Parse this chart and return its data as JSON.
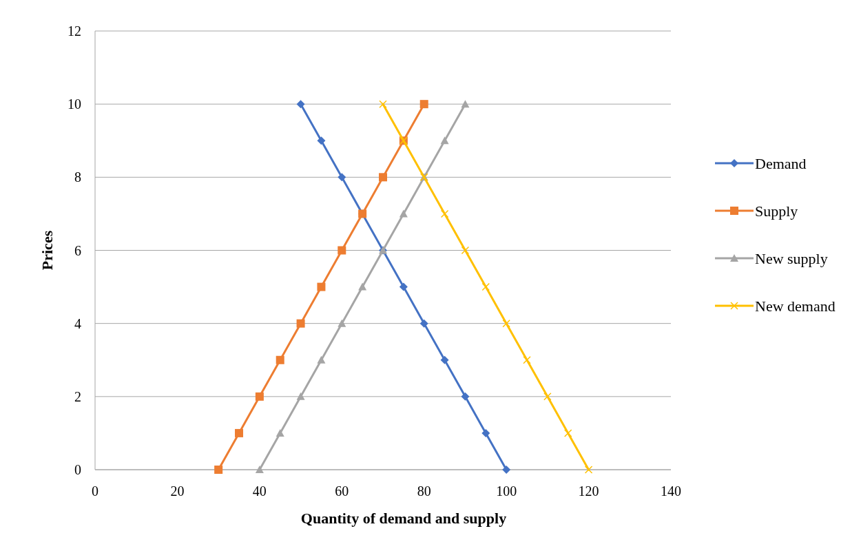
{
  "chart_data": {
    "type": "line",
    "xlabel": "Quantity of demand and supply",
    "ylabel": "Prices",
    "xlim": [
      0,
      140
    ],
    "xticks": [
      0,
      20,
      40,
      60,
      80,
      100,
      120,
      140
    ],
    "ylim": [
      0,
      12
    ],
    "yticks": [
      0,
      2,
      4,
      6,
      8,
      10,
      12
    ],
    "grid": "y",
    "legend": "right",
    "line_style": "solid",
    "series": [
      {
        "name": "Demand",
        "color": "#4472c4",
        "marker": "diamond",
        "x": [
          50,
          55,
          60,
          65,
          70,
          75,
          80,
          85,
          90,
          95,
          100
        ],
        "values": [
          10,
          9,
          8,
          7,
          6,
          5,
          4,
          3,
          2,
          1,
          0
        ]
      },
      {
        "name": "Supply",
        "color": "#ed7d31",
        "marker": "square",
        "x": [
          30,
          35,
          40,
          45,
          50,
          55,
          60,
          65,
          70,
          75,
          80
        ],
        "values": [
          0,
          1,
          2,
          3,
          4,
          5,
          6,
          7,
          8,
          9,
          10
        ]
      },
      {
        "name": "New supply",
        "color": "#a5a5a5",
        "marker": "triangle",
        "x": [
          40,
          45,
          50,
          55,
          60,
          65,
          70,
          75,
          80,
          85,
          90
        ],
        "values": [
          0,
          1,
          2,
          3,
          4,
          5,
          6,
          7,
          8,
          9,
          10
        ]
      },
      {
        "name": "New demand",
        "color": "#ffc000",
        "marker": "cross",
        "x": [
          70,
          75,
          80,
          85,
          90,
          95,
          100,
          105,
          110,
          115,
          120
        ],
        "values": [
          10,
          9,
          8,
          7,
          6,
          5,
          4,
          3,
          2,
          1,
          0
        ]
      }
    ]
  }
}
